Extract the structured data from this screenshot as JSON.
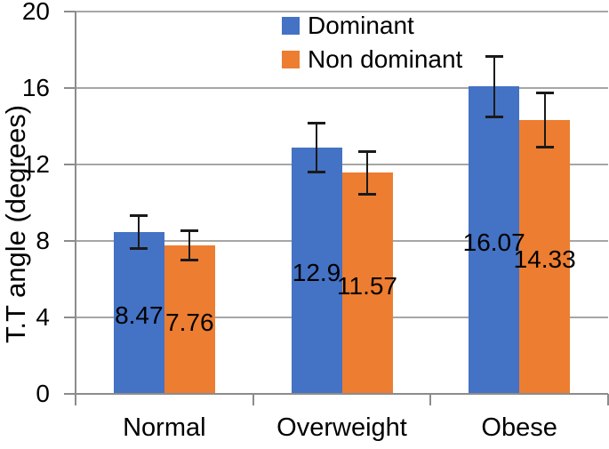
{
  "chart_data": {
    "type": "bar",
    "title": "",
    "xlabel": "",
    "ylabel": "T.T angle (degrees)",
    "ylim": [
      0,
      20
    ],
    "yticks": [
      0,
      4,
      8,
      12,
      16,
      20
    ],
    "grid": true,
    "legend_position": "top-center",
    "categories": [
      "Normal",
      "Overweight",
      "Obese"
    ],
    "series": [
      {
        "name": "Dominant",
        "color": "#4472C4",
        "values": [
          8.47,
          12.9,
          16.07
        ],
        "value_labels": [
          "8.47",
          "12.9",
          "16.07"
        ],
        "errors": [
          0.9,
          1.3,
          1.6
        ]
      },
      {
        "name": "Non dominant",
        "color": "#ED7D31",
        "values": [
          7.76,
          11.57,
          14.33
        ],
        "value_labels": [
          "7.76",
          "11.57",
          "14.33"
        ],
        "errors": [
          0.8,
          1.15,
          1.45
        ]
      }
    ]
  },
  "colors": {
    "gridline": "#A6A6A6",
    "axis": "#8C8C8C",
    "text": "#000000",
    "error_bar": "#1a1a1a",
    "background": "#ffffff"
  }
}
